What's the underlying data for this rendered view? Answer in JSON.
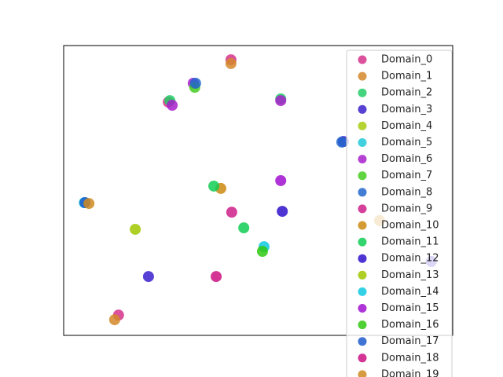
{
  "chart_data": {
    "type": "scatter",
    "xlim": [
      0,
      100
    ],
    "ylim": [
      0,
      100
    ],
    "series": [
      {
        "name": "Domain_0",
        "color": "#d6338a",
        "x": [
          43.0,
          26.9,
          14.1
        ],
        "y": [
          95.1,
          80.5,
          7.0
        ]
      },
      {
        "name": "Domain_1",
        "color": "#d4882a",
        "x": [
          43.0,
          13.1
        ],
        "y": [
          93.8,
          5.4
        ]
      },
      {
        "name": "Domain_2",
        "color": "#22cc66",
        "x": [
          27.3,
          55.8
        ],
        "y": [
          81.0,
          81.6
        ]
      },
      {
        "name": "Domain_3",
        "color": "#3a20cc",
        "x": [
          71.9,
          21.8
        ],
        "y": [
          66.9,
          20.3
        ]
      },
      {
        "name": "Domain_4",
        "color": "#a8cc10",
        "x": [],
        "y": []
      },
      {
        "name": "Domain_5",
        "color": "#20c8d8",
        "x": [
          5.3
        ],
        "y": [
          45.8
        ]
      },
      {
        "name": "Domain_6",
        "color": "#a820cc",
        "x": [
          33.3,
          27.9,
          55.8
        ],
        "y": [
          87.0,
          79.4,
          81.0
        ]
      },
      {
        "name": "Domain_7",
        "color": "#44cc20",
        "x": [
          33.7
        ],
        "y": [
          85.6
        ]
      },
      {
        "name": "Domain_8",
        "color": "#2266cc",
        "x": [
          33.9,
          71.5
        ],
        "y": [
          87.0,
          66.7
        ]
      },
      {
        "name": "Domain_9",
        "color": "#cc1f88",
        "x": [
          43.2
        ],
        "y": [
          42.5
        ]
      },
      {
        "name": "Domain_10",
        "color": "#cc8a10",
        "x": [
          40.4,
          81.2
        ],
        "y": [
          50.7,
          39.6
        ]
      },
      {
        "name": "Domain_11",
        "color": "#10cc55",
        "x": [
          38.6,
          46.3
        ],
        "y": [
          51.5,
          37.1
        ]
      },
      {
        "name": "Domain_12",
        "color": "#3010cc",
        "x": [
          56.2,
          94.5
        ],
        "y": [
          42.8,
          25.5
        ]
      },
      {
        "name": "Domain_13",
        "color": "#a0c800",
        "x": [
          18.4
        ],
        "y": [
          36.6
        ]
      },
      {
        "name": "Domain_14",
        "color": "#10c8e0",
        "x": [
          51.5
        ],
        "y": [
          30.6
        ]
      },
      {
        "name": "Domain_15",
        "color": "#a010d0",
        "x": [
          55.8
        ],
        "y": [
          53.4
        ]
      },
      {
        "name": "Domain_16",
        "color": "#30c810",
        "x": [
          51.1
        ],
        "y": [
          29.0
        ]
      },
      {
        "name": "Domain_17",
        "color": "#1f5ccc",
        "x": [
          5.5
        ],
        "y": [
          45.8
        ]
      },
      {
        "name": "Domain_18",
        "color": "#cc1080",
        "x": [
          39.2
        ],
        "y": [
          20.3
        ]
      },
      {
        "name": "Domain_19",
        "color": "#d08a20",
        "x": [
          6.5
        ],
        "y": [
          45.5
        ]
      }
    ]
  }
}
